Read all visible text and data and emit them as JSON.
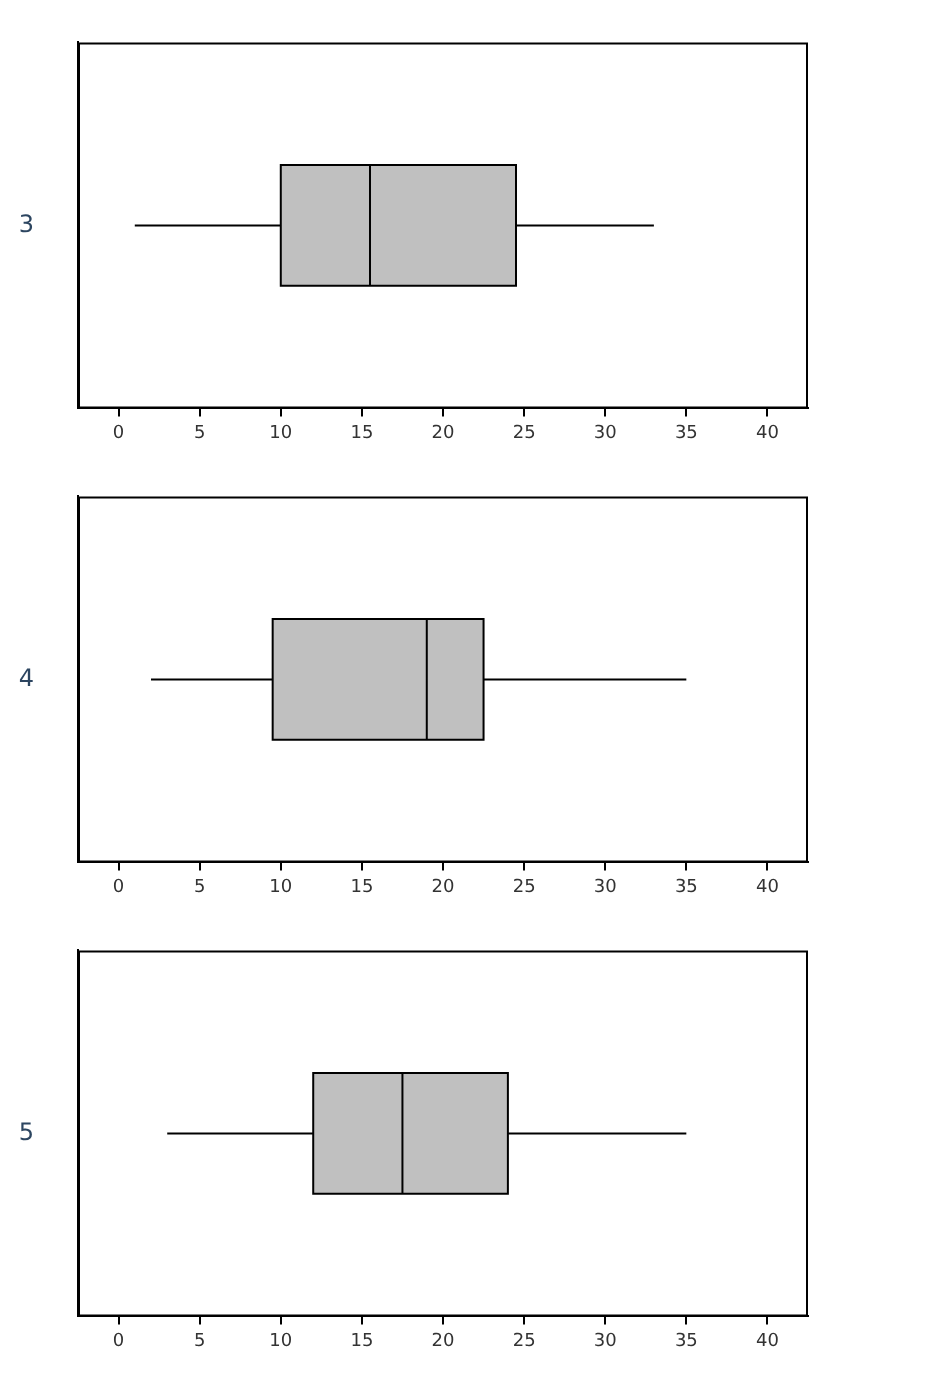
{
  "chart_data": [
    {
      "type": "box",
      "orientation": "horizontal",
      "categories": [
        "3"
      ],
      "color": "#c0c0c0",
      "boxes": [
        {
          "low": 1,
          "q1": 10,
          "median": 15.5,
          "q3": 24.5,
          "high": 33
        }
      ],
      "xlim": [
        -2.5,
        42.5
      ],
      "xticks": [
        0,
        5,
        10,
        15,
        20,
        25,
        30,
        35,
        40
      ],
      "grid": false,
      "legend": false
    },
    {
      "type": "box",
      "orientation": "horizontal",
      "categories": [
        "4"
      ],
      "color": "#c0c0c0",
      "boxes": [
        {
          "low": 2,
          "q1": 9.5,
          "median": 19,
          "q3": 22.5,
          "high": 35
        }
      ],
      "xlim": [
        -2.5,
        42.5
      ],
      "xticks": [
        0,
        5,
        10,
        15,
        20,
        25,
        30,
        35,
        40
      ],
      "grid": false,
      "legend": false
    },
    {
      "type": "box",
      "orientation": "horizontal",
      "categories": [
        "5"
      ],
      "color": "#c0c0c0",
      "boxes": [
        {
          "low": 3,
          "q1": 12,
          "median": 17.5,
          "q3": 24,
          "high": 35
        }
      ],
      "xlim": [
        -2.5,
        42.5
      ],
      "xticks": [
        0,
        5,
        10,
        15,
        20,
        25,
        30,
        35,
        40
      ],
      "grid": false,
      "legend": false
    }
  ]
}
